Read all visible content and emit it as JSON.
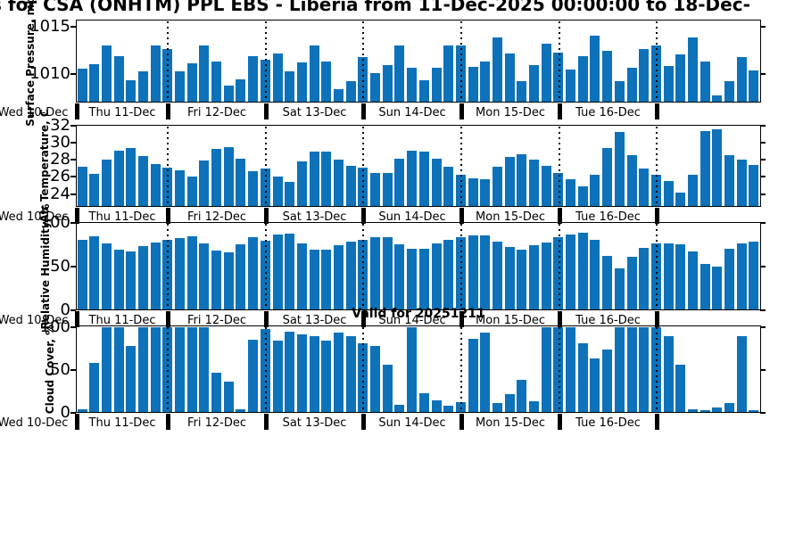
{
  "title": "s for CSA (ONHTM) PPL EBS  - Liberia from 11-Dec-2025 00:00:00 to 18-Dec-",
  "annotation": "Valid for 20251211",
  "colors": {
    "bar": "#0d72ba",
    "axis": "#000000",
    "background": "#ffffff"
  },
  "x_axis": {
    "left_label": "Wed 10-Dec",
    "day_labels": [
      "Thu 11-Dec",
      "Fri 12-Dec",
      "Sat 13-Dec",
      "Sun 14-Dec",
      "Mon 15-Dec",
      "Tue 16-Dec"
    ]
  },
  "chart_data": [
    {
      "type": "bar",
      "key": "surface-pressure",
      "ylabel": "Surface Pressure, mb",
      "ylim": [
        1007,
        1015.8
      ],
      "yticks": [
        1010,
        1015
      ],
      "grid": "dotted-day-boundaries",
      "values": [
        1010.6,
        1011.1,
        1013.1,
        1011.9,
        1009.4,
        1010.3,
        1013.1,
        1012.7,
        1010.3,
        1011.2,
        1013.1,
        1011.4,
        1008.8,
        1009.5,
        1011.9,
        1011.5,
        1012.2,
        1010.3,
        1011.3,
        1013.1,
        1011.4,
        1008.4,
        1009.3,
        1011.8,
        1010.1,
        1011.0,
        1013.1,
        1010.7,
        1009.4,
        1010.7,
        1013.1,
        1013.1,
        1010.8,
        1011.4,
        1013.9,
        1012.2,
        1009.3,
        1011.0,
        1013.2,
        1012.3,
        1010.5,
        1011.9,
        1014.1,
        1012.5,
        1009.3,
        1010.7,
        1012.7,
        1013.1,
        1010.9,
        1012.1,
        1013.9,
        1011.4,
        1007.8,
        1009.3,
        1011.8,
        1010.4
      ]
    },
    {
      "type": "bar",
      "key": "air-temperature",
      "ylabel": "Air Temperature, C",
      "ylim": [
        22.5,
        32.1
      ],
      "yticks": [
        24,
        26,
        28,
        30,
        32
      ],
      "grid": "dotted-day-boundaries",
      "values": [
        27.2,
        26.4,
        28.0,
        29.1,
        29.4,
        28.5,
        27.5,
        27.1,
        26.8,
        26.1,
        27.9,
        29.3,
        29.5,
        28.1,
        26.7,
        27.0,
        26.1,
        25.4,
        27.8,
        29.0,
        29.0,
        28.0,
        27.3,
        27.1,
        26.5,
        26.5,
        28.1,
        29.1,
        29.0,
        28.1,
        27.2,
        26.3,
        25.8,
        25.7,
        27.2,
        28.3,
        28.7,
        28.0,
        27.3,
        26.5,
        25.7,
        24.9,
        26.3,
        29.4,
        31.3,
        28.6,
        27.0,
        26.3,
        25.5,
        24.2,
        26.3,
        31.4,
        31.6,
        28.6,
        28.0,
        27.4
      ]
    },
    {
      "type": "bar",
      "key": "relative-humidity",
      "ylabel": "Relative Humidity, %",
      "ylim": [
        0,
        101.5
      ],
      "yticks": [
        0,
        50,
        100
      ],
      "grid": "dotted-day-boundaries",
      "values": [
        81,
        85,
        77,
        70,
        68,
        74,
        78,
        81,
        83,
        85,
        77,
        69,
        67,
        76,
        84,
        80,
        87,
        88,
        77,
        70,
        70,
        75,
        79,
        81,
        84,
        84,
        76,
        71,
        71,
        77,
        81,
        84,
        86,
        86,
        79,
        73,
        70,
        75,
        78,
        84,
        87,
        89,
        81,
        63,
        48,
        62,
        72,
        77,
        77,
        76,
        68,
        53,
        50,
        71,
        77,
        79
      ]
    },
    {
      "type": "bar",
      "key": "cloud-cover",
      "ylabel": "Cloud Cover, %",
      "ylim": [
        0,
        102
      ],
      "yticks": [
        0,
        50,
        100
      ],
      "grid": "dotted-day-boundaries",
      "values": [
        4,
        58,
        100,
        100,
        78,
        100,
        100,
        100,
        100,
        100,
        100,
        47,
        36,
        4,
        85,
        98,
        84,
        95,
        92,
        90,
        84,
        94,
        90,
        81,
        78,
        56,
        9,
        100,
        23,
        15,
        8,
        12,
        86,
        94,
        11,
        22,
        39,
        14,
        100,
        100,
        100,
        81,
        63,
        74,
        100,
        100,
        100,
        100,
        89,
        56,
        4,
        3,
        6,
        11,
        90,
        3
      ]
    }
  ]
}
